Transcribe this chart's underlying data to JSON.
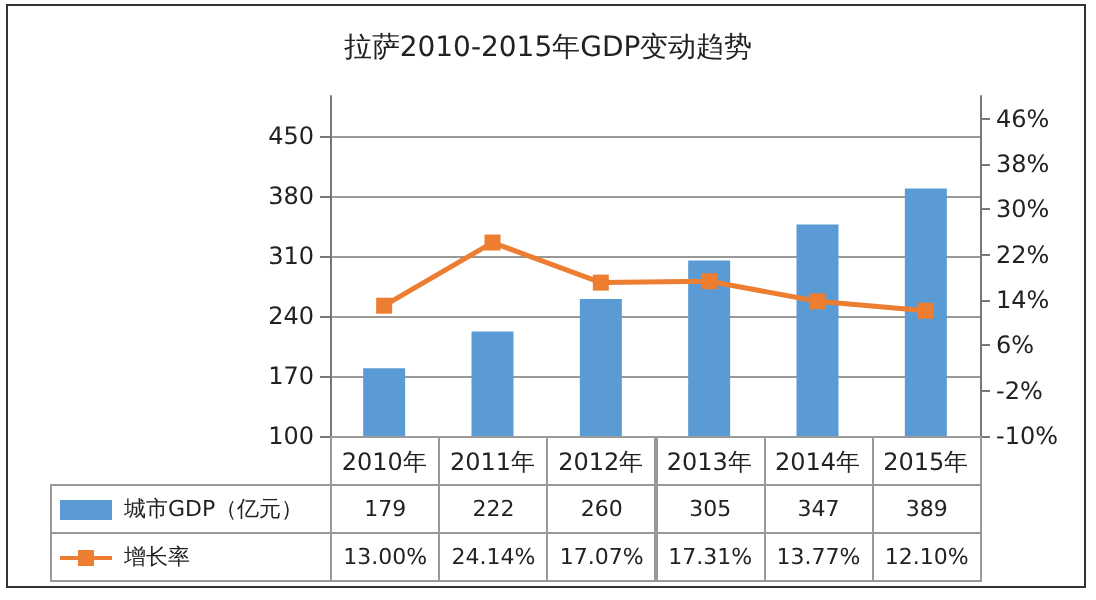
{
  "chart_data": {
    "type": "bar",
    "title": "拉萨2010-2015年GDP变动趋势",
    "categories": [
      "2010年",
      "2011年",
      "2012年",
      "2013年",
      "2014年",
      "2015年"
    ],
    "series": [
      {
        "name": "城市GDP（亿元）",
        "color": "#5b9bd5",
        "values": [
          179,
          222,
          260,
          305,
          347,
          389
        ],
        "value_labels": [
          "179",
          "222",
          "260",
          "305",
          "347",
          "389"
        ]
      },
      {
        "name": "增长率",
        "type": "line",
        "axis": "y2",
        "color": "#ed7d31",
        "marker": "square",
        "values": [
          13.0,
          24.14,
          17.07,
          17.31,
          13.77,
          12.1
        ],
        "value_labels": [
          "13.00%",
          "24.14%",
          "17.07%",
          "17.31%",
          "13.77%",
          "12.10%"
        ]
      }
    ],
    "ylim": [
      100,
      497
    ],
    "yticks": [
      100,
      170,
      240,
      310,
      380,
      450
    ],
    "y2lim": [
      -10,
      50
    ],
    "y2ticks": [
      {
        "value": -10,
        "label": "-10%"
      },
      {
        "value": -2,
        "label": "-2%"
      },
      {
        "value": 6,
        "label": "6%"
      },
      {
        "value": 14,
        "label": "14%"
      },
      {
        "value": 22,
        "label": "22%"
      },
      {
        "value": 30,
        "label": "30%"
      },
      {
        "value": 38,
        "label": "38%"
      },
      {
        "value": 46,
        "label": "46%"
      }
    ],
    "grid": "y",
    "legend": "bottom"
  }
}
